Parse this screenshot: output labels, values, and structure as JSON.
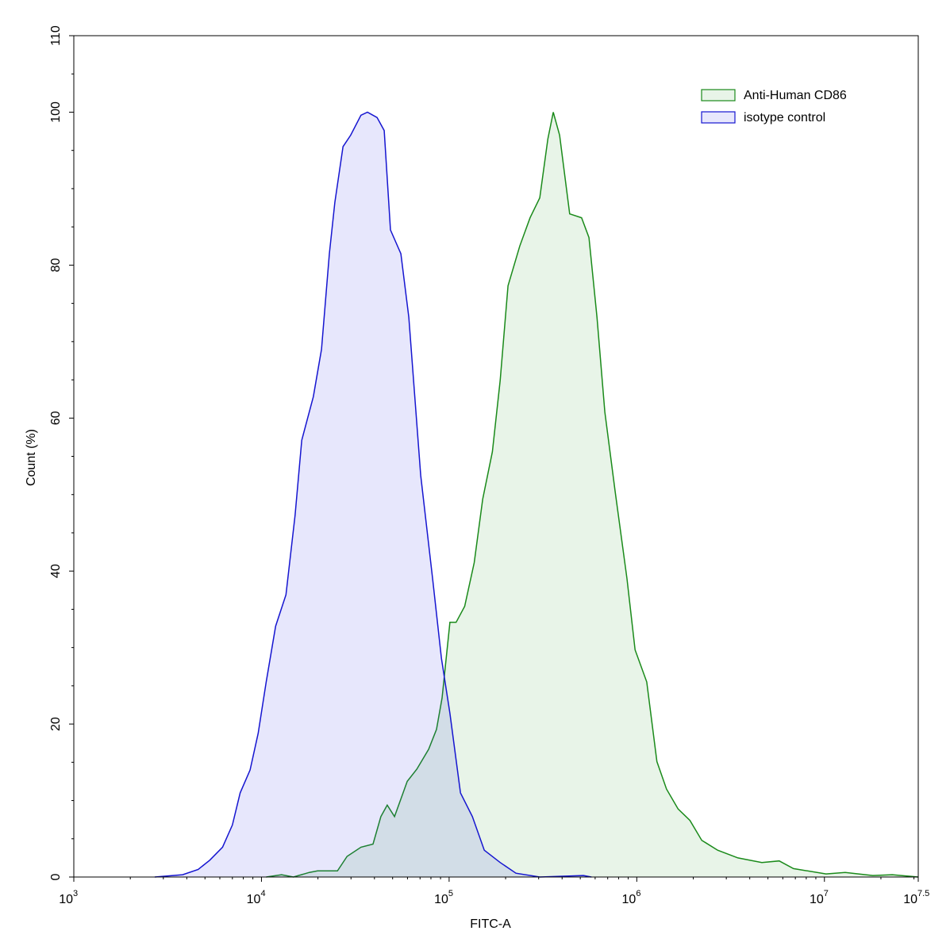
{
  "chart_data": {
    "type": "histogram-overlay",
    "x_label": "FITC-A",
    "y_label": "Count  (%)",
    "xscale": "log",
    "xlim": [
      1000,
      31622776.6
    ],
    "xticks": [
      {
        "value": 1000,
        "label": "10",
        "exponent": "3"
      },
      {
        "value": 10000,
        "label": "10",
        "exponent": "4"
      },
      {
        "value": 100000,
        "label": "10",
        "exponent": "5"
      },
      {
        "value": 1000000,
        "label": "10",
        "exponent": "6"
      },
      {
        "value": 10000000,
        "label": "10",
        "exponent": "7"
      },
      {
        "value": 31622776.6,
        "label": "10",
        "exponent": "7.5"
      }
    ],
    "xminorticks": [
      2000,
      3000,
      4000,
      5000,
      6000,
      7000,
      8000,
      9000,
      20000,
      30000,
      40000,
      50000,
      60000,
      70000,
      80000,
      90000,
      200000,
      300000,
      400000,
      500000,
      600000,
      700000,
      800000,
      900000,
      2000000,
      3000000,
      4000000,
      5000000,
      6000000,
      7000000,
      8000000,
      9000000,
      20000000,
      30000000
    ],
    "ylim": [
      0,
      110
    ],
    "yticks": [
      0,
      20,
      40,
      60,
      80,
      100,
      110
    ],
    "yminorticks": [
      5,
      10,
      15,
      25,
      30,
      35,
      45,
      50,
      55,
      65,
      70,
      75,
      85,
      90,
      95,
      105
    ],
    "legend": "upper-right",
    "series": [
      {
        "name": "Anti-Human CD86",
        "color": "#1a8a1a",
        "fill": "rgba(0,128,0,0.09)",
        "x": [
          10600,
          12800,
          14800,
          18000,
          19900,
          25400,
          28600,
          33900,
          39300,
          43300,
          46800,
          51200,
          59800,
          67300,
          77800,
          85700,
          91700,
          101000,
          109000,
          121000,
          136000,
          151000,
          170000,
          187000,
          206000,
          238000,
          270000,
          304000,
          336000,
          359000,
          388000,
          439000,
          508000,
          556000,
          614000,
          676000,
          767000,
          887000,
          979000,
          1130000,
          1280000,
          1440000,
          1660000,
          1920000,
          2220000,
          2700000,
          3460000,
          4640000,
          5740000,
          6840000,
          10200000,
          12900000,
          18100000,
          23000000,
          31600000
        ],
        "values": [
          0,
          0.3,
          0,
          0.6,
          0.8,
          0.8,
          2.7,
          3.9,
          4.3,
          7.9,
          9.4,
          7.9,
          12.5,
          14.1,
          16.7,
          19.3,
          23.4,
          33.3,
          33.3,
          35.4,
          41.1,
          49.4,
          55.6,
          64.9,
          77.3,
          82.5,
          86.2,
          88.8,
          96.5,
          100,
          97,
          86.7,
          86.2,
          83.6,
          73.2,
          60.8,
          50.4,
          39,
          29.7,
          25.5,
          15.1,
          11.5,
          8.9,
          7.4,
          4.8,
          3.5,
          2.5,
          1.9,
          2.1,
          1.1,
          0.4,
          0.6,
          0.2,
          0.3,
          0
        ]
      },
      {
        "name": "isotype control",
        "color": "#1515d0",
        "fill": "rgba(60,60,230,0.12)",
        "x": [
          2700,
          3800,
          4600,
          5300,
          6200,
          7000,
          7700,
          8700,
          9600,
          10600,
          11900,
          13500,
          15100,
          16400,
          18900,
          20900,
          23000,
          24600,
          27200,
          29900,
          33900,
          36700,
          41300,
          45100,
          48700,
          55300,
          61000,
          70600,
          81700,
          91000,
          101000,
          115000,
          133000,
          154000,
          187000,
          227000,
          304000,
          520000,
          573000
        ],
        "values": [
          0,
          0.3,
          1,
          2.2,
          3.9,
          6.8,
          11,
          14,
          18.8,
          25.5,
          32.8,
          36.9,
          47.3,
          57.1,
          62.8,
          69,
          81.5,
          88.2,
          95.5,
          97,
          99.6,
          100,
          99.3,
          97.6,
          84.6,
          81.5,
          73.2,
          52.5,
          39,
          28.6,
          21.4,
          11,
          7.9,
          3.5,
          1.9,
          0.5,
          0,
          0.2,
          0
        ]
      }
    ]
  }
}
